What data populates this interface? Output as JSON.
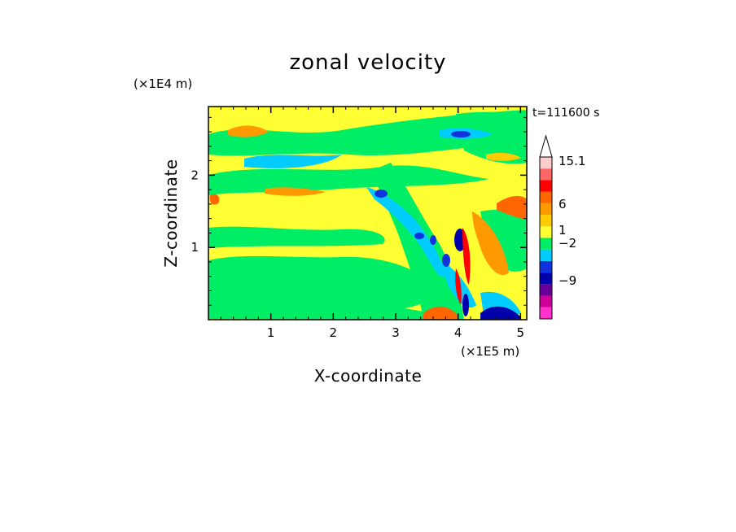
{
  "chart_data": {
    "type": "heatmap",
    "title": "zonal velocity",
    "xlabel": "X-coordinate",
    "ylabel": "Z-coordinate",
    "x_scale_label": "(×1E5 m)",
    "y_scale_label": "(×1E4 m)",
    "time_label": "t=111600 s",
    "xlim": [
      0,
      5.1
    ],
    "ylim": [
      0,
      2.95
    ],
    "x_ticks": [
      "1",
      "2",
      "3",
      "4",
      "5"
    ],
    "y_ticks": [
      "1",
      "2"
    ],
    "colorbar_labels": [
      "15.1",
      "6",
      "1",
      "−2",
      "−9"
    ],
    "colorbar_colors": [
      "#ff33cc",
      "#cc0099",
      "#660099",
      "#0000aa",
      "#1133dd",
      "#00ccff",
      "#00ee66",
      "#ffff33",
      "#ffcc00",
      "#ff9900",
      "#ff6600",
      "#ff0000",
      "#ff6666",
      "#ffcccc"
    ],
    "field_colors": {
      "background": "#ffff33",
      "green": "#00ee66",
      "cyan": "#00ccff",
      "blue": "#1133dd",
      "navy": "#0000aa",
      "orange": "#ff9900",
      "darkorange": "#ff6600",
      "red": "#ff0000",
      "amber": "#ffcc00"
    }
  }
}
